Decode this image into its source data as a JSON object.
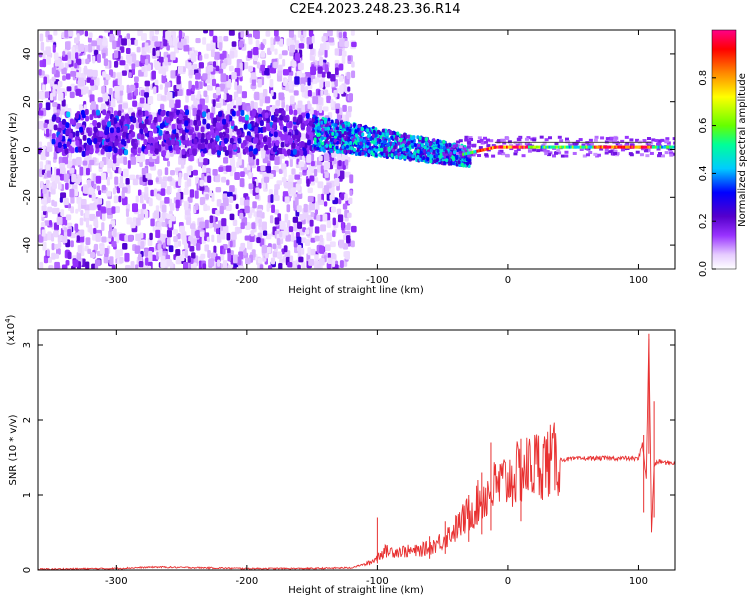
{
  "title": "C2E4.2023.248.23.36.R14",
  "chart_data": [
    {
      "type": "heatmap",
      "xlabel": "Height of straight line (km)",
      "ylabel": "Frequency (Hz)",
      "xlim": [
        -360,
        128
      ],
      "ylim": [
        -50,
        50
      ],
      "x_ticks": [
        -300,
        -200,
        -100,
        0,
        100
      ],
      "y_ticks": [
        -40,
        -20,
        0,
        20,
        40
      ],
      "colorbar": {
        "label": "Normalized spectral amplitude",
        "range": [
          0,
          1
        ],
        "ticks": [
          0.0,
          0.2,
          0.4,
          0.6,
          0.8
        ],
        "tick_labels": [
          "0.0",
          "0.2",
          "0.4",
          "0.6",
          "0.8"
        ],
        "colormap": [
          "#ffffff",
          "#e6ccff",
          "#9933ff",
          "#5500cc",
          "#0000ff",
          "#00ccff",
          "#00ff99",
          "#66ff00",
          "#ffff00",
          "#ff8800",
          "#ff0000",
          "#ff0088"
        ]
      },
      "regions": [
        {
          "x_range": [
            -360,
            -120
          ],
          "freq_spread": 50,
          "amplitude": "low (0.1-0.3), scattered noise"
        },
        {
          "x_range": [
            -330,
            -180
          ],
          "freq_center": 7,
          "amplitude": "0.2-0.5 patches"
        },
        {
          "x_range": [
            -150,
            -30
          ],
          "freq_center_from": 7,
          "freq_center_to": -3,
          "amplitude": "0.3-0.6"
        },
        {
          "x_range": [
            -30,
            128
          ],
          "freq_center": 1,
          "amplitude": "0.5-1.0 narrow band"
        }
      ]
    },
    {
      "type": "line",
      "xlabel": "Height of straight line (km)",
      "ylabel": "SNR (10 * v/v)",
      "y_multiplier": "(x10",
      "y_multiplier_exp": "4",
      "y_multiplier_close": ")",
      "xlim": [
        -360,
        128
      ],
      "ylim": [
        0,
        3.2
      ],
      "x_ticks": [
        -300,
        -200,
        -100,
        0,
        100
      ],
      "y_ticks": [
        0,
        1,
        2,
        3
      ],
      "color": "#e83030",
      "series": [
        {
          "x": [
            -360,
            -300,
            -270,
            -200,
            -150,
            -120,
            -105,
            -95,
            -85,
            -70,
            -60,
            -50,
            -40,
            -30,
            -20,
            -10,
            0,
            10,
            20,
            30,
            40,
            50,
            60,
            70,
            80,
            90,
            100,
            103,
            106,
            108,
            110,
            112,
            116,
            120,
            128
          ],
          "y": [
            0.01,
            0.02,
            0.04,
            0.02,
            0.02,
            0.03,
            0.1,
            0.25,
            0.25,
            0.25,
            0.3,
            0.4,
            0.55,
            0.75,
            0.95,
            1.1,
            1.2,
            1.3,
            1.4,
            1.45,
            1.47,
            1.48,
            1.49,
            1.49,
            1.49,
            1.49,
            1.48,
            1.7,
            1.2,
            3.1,
            0.5,
            1.4,
            1.45,
            1.43,
            1.43
          ]
        }
      ],
      "spikes": [
        {
          "x": -100,
          "y": 0.7
        },
        {
          "x": -60,
          "y": 0.45
        },
        {
          "x": -48,
          "y": 0.65
        },
        {
          "x": -30,
          "y": 1.0
        },
        {
          "x": -20,
          "y": 1.3
        },
        {
          "x": -13,
          "y": 1.7
        },
        {
          "x": 10,
          "y": 1.75
        },
        {
          "x": 104,
          "y": 1.8
        },
        {
          "x": 108,
          "y": 3.15
        },
        {
          "x": 112,
          "y": 2.25
        }
      ]
    }
  ]
}
